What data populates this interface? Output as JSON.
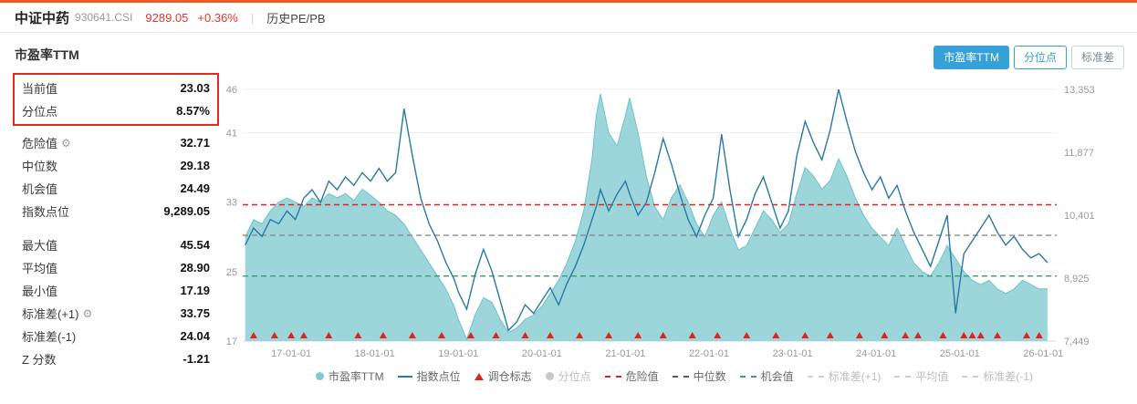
{
  "header": {
    "title": "中证中药",
    "code": "930641.CSI",
    "price": "9289.05",
    "change": "+0.36%",
    "separator": "|",
    "nav_label": "历史PE/PB"
  },
  "panel": {
    "title": "市盈率TTM",
    "highlight_rows": [
      {
        "label": "当前值",
        "value": "23.03"
      },
      {
        "label": "分位点",
        "value": "8.57%"
      }
    ],
    "rows_a": [
      {
        "label": "危险值",
        "value": "32.71",
        "gear": true
      },
      {
        "label": "中位数",
        "value": "29.18"
      },
      {
        "label": "机会值",
        "value": "24.49"
      },
      {
        "label": "指数点位",
        "value": "9,289.05"
      }
    ],
    "rows_b": [
      {
        "label": "最大值",
        "value": "45.54"
      },
      {
        "label": "平均值",
        "value": "28.90"
      },
      {
        "label": "最小值",
        "value": "17.19"
      },
      {
        "label": "标准差(+1)",
        "value": "33.75",
        "gear": true
      },
      {
        "label": "标准差(-1)",
        "value": "24.04"
      },
      {
        "label": "Z 分数",
        "value": "-1.21"
      }
    ]
  },
  "toolbar": {
    "buttons": [
      {
        "label": "市盈率TTM",
        "active": true
      },
      {
        "label": "分位点",
        "active": false
      },
      {
        "label": "标准差",
        "active": false
      }
    ]
  },
  "colors": {
    "accent_orange": "#f05a28",
    "price_red": "#e5352b",
    "highlight_border": "#e8281e",
    "active_tab_blue": "#36a0d9",
    "pe_area_teal": "#8fd0d5",
    "index_line_blue": "#2878a6",
    "danger_red": "#d62a20",
    "median_gray": "#8a8a8a",
    "opportunity_green": "#3a9e6d"
  },
  "chart_data": {
    "type": "area",
    "title": "市盈率TTM",
    "grid": true,
    "legend_position": "bottom",
    "x_range": [
      2016.42,
      2026.16
    ],
    "x_ticks": [
      2017,
      2018,
      2019,
      2020,
      2021,
      2022,
      2023,
      2024,
      2025,
      2026
    ],
    "x_tick_labels": [
      "17-01-01",
      "18-01-01",
      "19-01-01",
      "20-01-01",
      "21-01-01",
      "22-01-01",
      "23-01-01",
      "24-01-01",
      "25-01-01",
      "26-01-01"
    ],
    "left_axis": {
      "name": "市盈率TTM",
      "min": 17,
      "max": 46,
      "ticks": [
        17,
        25,
        33,
        41,
        46
      ]
    },
    "right_axis": {
      "name": "指数点位",
      "min": 7449,
      "max": 13353,
      "ticks": [
        7449,
        8925,
        10401,
        11877,
        13353
      ],
      "tick_labels": [
        "7,449",
        "8,925",
        "10,401",
        "11,877",
        "13,353"
      ]
    },
    "series": [
      {
        "name": "市盈率TTM",
        "type": "area",
        "axis": "left",
        "color": "#8fd0d5",
        "line_color": "#6cc3c9",
        "x": [
          2016.45,
          2016.55,
          2016.65,
          2016.75,
          2016.85,
          2016.95,
          2017.05,
          2017.15,
          2017.25,
          2017.35,
          2017.45,
          2017.55,
          2017.65,
          2017.75,
          2017.85,
          2017.95,
          2018.05,
          2018.15,
          2018.25,
          2018.35,
          2018.45,
          2018.55,
          2018.65,
          2018.75,
          2018.85,
          2018.95,
          2019.0,
          2019.1,
          2019.2,
          2019.3,
          2019.4,
          2019.5,
          2019.6,
          2019.7,
          2019.8,
          2019.9,
          2020.0,
          2020.1,
          2020.2,
          2020.3,
          2020.4,
          2020.5,
          2020.6,
          2020.65,
          2020.7,
          2020.8,
          2020.9,
          2021.0,
          2021.05,
          2021.15,
          2021.25,
          2021.35,
          2021.45,
          2021.55,
          2021.65,
          2021.75,
          2021.85,
          2021.95,
          2022.05,
          2022.15,
          2022.25,
          2022.35,
          2022.45,
          2022.55,
          2022.65,
          2022.75,
          2022.85,
          2022.95,
          2023.05,
          2023.15,
          2023.25,
          2023.35,
          2023.45,
          2023.55,
          2023.65,
          2023.75,
          2023.85,
          2023.95,
          2024.05,
          2024.15,
          2024.25,
          2024.35,
          2024.45,
          2024.55,
          2024.65,
          2024.75,
          2024.85,
          2024.95,
          2025.05,
          2025.15,
          2025.25,
          2025.35,
          2025.45,
          2025.55,
          2025.65,
          2025.75,
          2025.85,
          2025.95,
          2026.05
        ],
        "values": [
          29,
          31,
          30.5,
          32,
          33,
          33.5,
          33,
          32.5,
          33.5,
          33,
          34,
          33.5,
          34,
          33.2,
          34.5,
          33.8,
          33,
          32,
          31.5,
          30.5,
          29,
          27.5,
          26,
          24.5,
          23,
          21,
          19.5,
          17.2,
          20,
          22,
          21.5,
          19.5,
          18,
          18.5,
          19.5,
          20,
          21,
          22.5,
          24,
          26,
          28.5,
          32,
          38,
          43,
          45.5,
          41,
          39.5,
          43,
          45,
          41,
          36,
          32.5,
          31,
          33.5,
          35,
          33,
          30.5,
          29,
          31.5,
          33,
          30,
          27.5,
          28,
          30,
          32,
          31,
          29.5,
          30.5,
          34,
          37,
          36,
          34.5,
          35.5,
          38,
          36,
          33.5,
          31.5,
          30,
          29,
          28,
          30,
          28,
          26,
          25,
          24.5,
          26,
          28,
          26.5,
          25,
          24,
          23.5,
          24,
          23,
          22.5,
          23,
          24,
          23.5,
          23,
          23.03
        ]
      },
      {
        "name": "指数点位",
        "type": "line",
        "axis": "right",
        "color": "#2878a6",
        "x": [
          2016.45,
          2016.55,
          2016.65,
          2016.75,
          2016.85,
          2016.95,
          2017.05,
          2017.15,
          2017.25,
          2017.35,
          2017.45,
          2017.55,
          2017.65,
          2017.75,
          2017.85,
          2017.95,
          2018.05,
          2018.15,
          2018.25,
          2018.35,
          2018.45,
          2018.55,
          2018.65,
          2018.75,
          2018.85,
          2018.95,
          2019.0,
          2019.1,
          2019.2,
          2019.3,
          2019.4,
          2019.5,
          2019.6,
          2019.7,
          2019.8,
          2019.9,
          2020.0,
          2020.1,
          2020.2,
          2020.3,
          2020.4,
          2020.5,
          2020.6,
          2020.65,
          2020.7,
          2020.8,
          2020.9,
          2021.0,
          2021.05,
          2021.15,
          2021.25,
          2021.35,
          2021.45,
          2021.55,
          2021.65,
          2021.75,
          2021.85,
          2021.95,
          2022.05,
          2022.15,
          2022.25,
          2022.35,
          2022.45,
          2022.55,
          2022.65,
          2022.75,
          2022.85,
          2022.95,
          2023.05,
          2023.15,
          2023.25,
          2023.35,
          2023.45,
          2023.55,
          2023.65,
          2023.75,
          2023.85,
          2023.95,
          2024.05,
          2024.15,
          2024.25,
          2024.35,
          2024.45,
          2024.55,
          2024.65,
          2024.75,
          2024.85,
          2024.95,
          2025.05,
          2025.15,
          2025.25,
          2025.35,
          2025.45,
          2025.55,
          2025.65,
          2025.75,
          2025.85,
          2025.95,
          2026.05
        ],
        "values": [
          9700,
          10100,
          9900,
          10300,
          10200,
          10500,
          10300,
          10800,
          11000,
          10700,
          11200,
          11000,
          11300,
          11100,
          11400,
          11200,
          11500,
          11200,
          11400,
          12900,
          11800,
          10800,
          10200,
          9800,
          9300,
          8900,
          8600,
          8200,
          9000,
          9600,
          9100,
          8400,
          7700,
          7900,
          8300,
          8100,
          8400,
          8700,
          8300,
          8800,
          9200,
          9700,
          10300,
          10600,
          11000,
          10500,
          10900,
          11200,
          10900,
          10400,
          10700,
          11400,
          12200,
          11600,
          10900,
          10300,
          9900,
          10400,
          10800,
          12300,
          11000,
          9900,
          10300,
          10900,
          11300,
          10700,
          10100,
          10500,
          11800,
          12600,
          12100,
          11700,
          12400,
          13353,
          12600,
          11900,
          11400,
          11000,
          11300,
          10800,
          11100,
          10500,
          10000,
          9600,
          9200,
          9800,
          10400,
          8100,
          9500,
          9800,
          10100,
          10400,
          10000,
          9700,
          9900,
          9600,
          9400,
          9500,
          9289
        ]
      },
      {
        "name": "调仓标志",
        "type": "marker-triangle",
        "axis": "bottom",
        "color": "#e0231c",
        "x": [
          2016.55,
          2016.8,
          2017.0,
          2017.15,
          2017.45,
          2017.8,
          2018.1,
          2018.45,
          2018.8,
          2019.15,
          2019.45,
          2019.8,
          2020.1,
          2020.45,
          2020.8,
          2021.15,
          2021.45,
          2021.8,
          2022.1,
          2022.45,
          2022.8,
          2023.15,
          2023.45,
          2023.8,
          2024.1,
          2024.35,
          2024.5,
          2024.8,
          2025.05,
          2025.15,
          2025.25,
          2025.45,
          2025.8,
          2025.95
        ]
      }
    ],
    "reference_lines": [
      {
        "name": "危险值",
        "value": 32.71,
        "axis": "left",
        "color": "#d62a20",
        "style": "dashed"
      },
      {
        "name": "中位数",
        "value": 29.18,
        "axis": "left",
        "color": "#8a8a8a",
        "style": "dashed"
      },
      {
        "name": "机会值",
        "value": 24.49,
        "axis": "left",
        "color": "#3a9e6d",
        "style": "dashed"
      }
    ],
    "legend": [
      {
        "label": "市盈率TTM",
        "marker": "circle",
        "color": "#7fccd1",
        "disabled": false
      },
      {
        "label": "指数点位",
        "marker": "line",
        "color": "#2878a6",
        "disabled": false
      },
      {
        "label": "调仓标志",
        "marker": "triangle",
        "color": "#e0231c",
        "disabled": false
      },
      {
        "label": "分位点",
        "marker": "circle",
        "color": "#c7c7c7",
        "disabled": true
      },
      {
        "label": "危险值",
        "marker": "dash",
        "color": "#d62a20",
        "disabled": false
      },
      {
        "label": "中位数",
        "marker": "dash",
        "color": "#5a5a5a",
        "disabled": false
      },
      {
        "label": "机会值",
        "marker": "dash",
        "color": "#3a9e6d",
        "disabled": false
      },
      {
        "label": "标准差(+1)",
        "marker": "dash",
        "color": "#cfcfcf",
        "disabled": true
      },
      {
        "label": "平均值",
        "marker": "dash",
        "color": "#cfcfcf",
        "disabled": true
      },
      {
        "label": "标准差(-1)",
        "marker": "dash",
        "color": "#cfcfcf",
        "disabled": true
      }
    ]
  }
}
